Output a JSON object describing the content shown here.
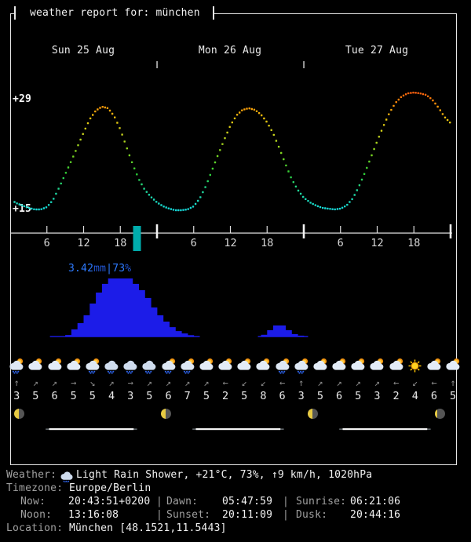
{
  "title": "weather report for: münchen",
  "chart_data": {
    "type": "line",
    "title": "3-day hourly temperature forecast for München (°C)",
    "days": [
      "Sun 25 Aug",
      "Mon 26 Aug",
      "Tue 27 Aug"
    ],
    "y_axis": {
      "max_label": "+29",
      "min_label": "+15",
      "max": 29,
      "min": 15
    },
    "hour_tick_labels": [
      "6",
      "12",
      "18"
    ],
    "hours_per_day": 24,
    "now_hour": 20.73,
    "temps_hourly": [
      16.3,
      15.8,
      15.5,
      15.2,
      15.0,
      15.0,
      15.3,
      16.2,
      17.8,
      19.5,
      21.2,
      23.0,
      24.8,
      26.5,
      27.6,
      28.1,
      27.9,
      26.9,
      25.2,
      23.0,
      20.8,
      18.9,
      17.5,
      16.6,
      15.9,
      15.4,
      15.1,
      14.9,
      14.9,
      15.0,
      15.4,
      16.4,
      18.0,
      20.0,
      22.0,
      23.9,
      25.7,
      27.0,
      27.7,
      27.9,
      27.7,
      27.1,
      26.1,
      24.7,
      22.8,
      20.8,
      18.9,
      17.5,
      16.5,
      15.9,
      15.5,
      15.2,
      15.1,
      15.0,
      15.1,
      15.5,
      16.4,
      17.9,
      19.7,
      21.7,
      23.7,
      25.6,
      27.3,
      28.6,
      29.4,
      29.8,
      29.9,
      29.8,
      29.6,
      29.0,
      28.0,
      26.8,
      26.0
    ],
    "precipitation": {
      "peak_mm": 3.42,
      "probability_pct": 73,
      "label": {
        "amount": "3.42",
        "amount_unit": "mm",
        "sep": "|",
        "prob": "73",
        "prob_unit": "%"
      },
      "bars": [
        {
          "t": 9,
          "mm": 0.09
        },
        {
          "t": 10,
          "mm": 0.42
        },
        {
          "t": 11,
          "mm": 0.79
        },
        {
          "t": 12,
          "mm": 1.25
        },
        {
          "t": 13,
          "mm": 1.94
        },
        {
          "t": 14,
          "mm": 2.59
        },
        {
          "t": 15,
          "mm": 3.1
        },
        {
          "t": 16,
          "mm": 3.42
        },
        {
          "t": 17,
          "mm": 3.42
        },
        {
          "t": 18,
          "mm": 3.42
        },
        {
          "t": 19,
          "mm": 3.42
        },
        {
          "t": 20,
          "mm": 3.1
        },
        {
          "t": 21,
          "mm": 2.73
        },
        {
          "t": 22,
          "mm": 2.27
        },
        {
          "t": 23,
          "mm": 1.71
        },
        {
          "t": 24,
          "mm": 1.25
        },
        {
          "t": 25,
          "mm": 0.88
        },
        {
          "t": 26,
          "mm": 0.55
        },
        {
          "t": 27,
          "mm": 0.32
        },
        {
          "t": 28,
          "mm": 0.18
        },
        {
          "t": 29,
          "mm": 0.08
        },
        {
          "t": 41,
          "mm": 0.1
        },
        {
          "t": 42,
          "mm": 0.37
        },
        {
          "t": 43,
          "mm": 0.65
        },
        {
          "t": 44,
          "mm": 0.65
        },
        {
          "t": 45,
          "mm": 0.37
        },
        {
          "t": 46,
          "mm": 0.14
        },
        {
          "t": 47,
          "mm": 0.05
        }
      ],
      "baselines": [
        [
          6.5,
          31.0
        ],
        [
          40.5,
          48.7
        ]
      ]
    }
  },
  "forecast_3h": {
    "icons": [
      "rain-sun",
      "sun-cloud",
      "sun-cloud",
      "sun-cloud",
      "rain-sun",
      "rain",
      "rain",
      "rain",
      "rain-sun",
      "rain-sun",
      "sun-cloud",
      "sun-cloud",
      "sun-cloud",
      "sun-cloud",
      "rain-sun",
      "rain-sun",
      "sun-cloud",
      "sun-cloud",
      "sun-cloud",
      "sun-cloud",
      "sun-cloud",
      "sun",
      "sun-cloud",
      "sun-cloud"
    ],
    "wind_dirs": [
      "↑",
      "↗",
      "↗",
      "→",
      "↘",
      "↗",
      "→",
      "↗",
      "↗",
      "↗",
      "↗",
      "←",
      "↙",
      "↙",
      "←",
      "↑",
      "↗",
      "↗",
      "↗",
      "↗",
      "←",
      "↙",
      "←",
      "↑"
    ],
    "wind_speeds": [
      "3",
      "5",
      "6",
      "5",
      "5",
      "4",
      "3",
      "5",
      "6",
      "7",
      "5",
      "2",
      "5",
      "8",
      "6",
      "3",
      "5",
      "6",
      "5",
      "3",
      "2",
      "4",
      "6",
      "5"
    ]
  },
  "astronomy": {
    "moon_phase_fractions": [
      0.46,
      0.5,
      0.46,
      0.3
    ],
    "daylight": {
      "dawn_h": 5.8,
      "sunrise_h": 6.35,
      "sunset_h": 20.19,
      "dusk_h": 20.74
    }
  },
  "status": {
    "weather_label": "Weather:",
    "weather_icon": "light-rain-shower",
    "weather_value": "Light Rain Shower, +21°C, 73%, ↑9 km/h, 1020hPa",
    "timezone_label": "Timezone:",
    "timezone_value": "Europe/Berlin",
    "now_label": "Now:",
    "now_value": "20:43:51+0200",
    "dawn_label": "Dawn:",
    "dawn_value": "05:47:59",
    "sunrise_label": "Sunrise:",
    "sunrise_value": "06:21:06",
    "noon_label": "Noon:",
    "noon_value": "13:16:08",
    "sunset_label": "Sunset:",
    "sunset_value": "20:11:09",
    "dusk_label": "Dusk:",
    "dusk_value": "20:44:16",
    "location_label": "Location:",
    "location_value": "München [48.1521,11.5443]",
    "separator": "|"
  },
  "colors": {
    "now_marker": "#00acac",
    "precip_bar": "#1c1ce8",
    "precip_label_bright": "#2e7bff",
    "precip_label_dim": "#2257d6",
    "frame": "#e6e6e6"
  }
}
